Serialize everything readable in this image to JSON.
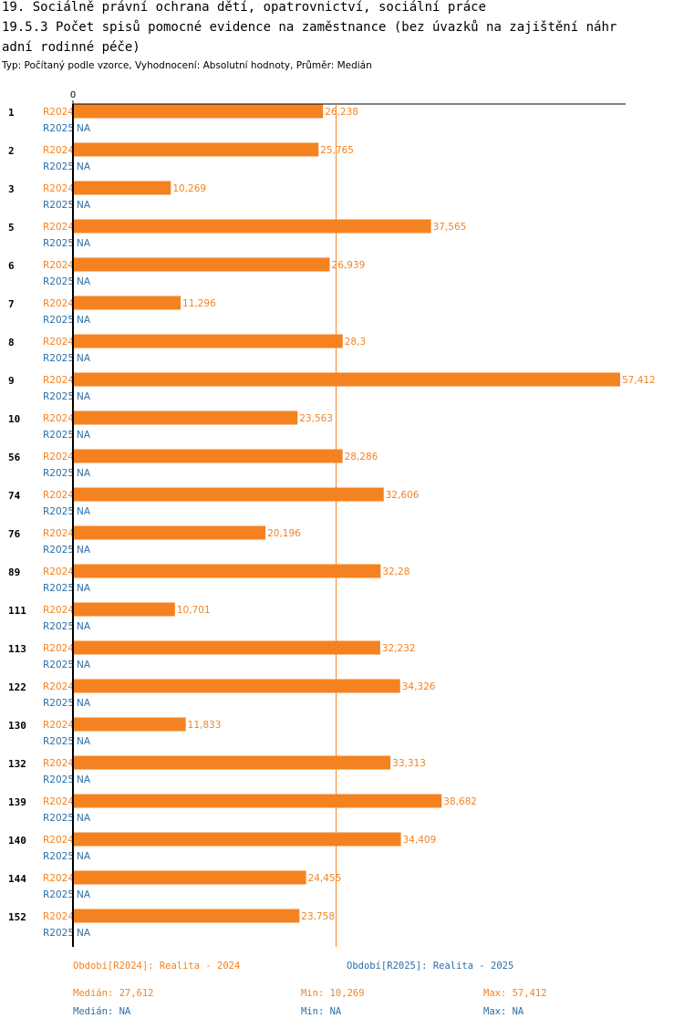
{
  "title_lines": [
    "19. Sociálně právní ochrana dětí, opatrovnictví, sociální práce",
    "19.5.3 Počet spisů pomocné evidence na zaměstnance  (bez úvazků na zajištění náhr",
    "adní rodinné péče)"
  ],
  "subtitle": "Typ: Počítaný podle vzorce, Vyhodnocení: Absolutní hodnoty, Průměr: Medián",
  "colors": {
    "r2024": "#f58220",
    "r2025": "#2a6fa8",
    "axis": "#000000",
    "median_line": "#f58220"
  },
  "chart_data": {
    "type": "bar",
    "orientation": "horizontal",
    "x_start_label": "0",
    "xlim": [
      0,
      57.412
    ],
    "median_line": 27.612,
    "categories": [
      "1",
      "2",
      "3",
      "5",
      "6",
      "7",
      "8",
      "9",
      "10",
      "56",
      "74",
      "76",
      "89",
      "111",
      "113",
      "122",
      "130",
      "132",
      "139",
      "140",
      "144",
      "152"
    ],
    "series": [
      {
        "name": "R2024",
        "values": [
          26.238,
          25.765,
          10.269,
          37.565,
          26.939,
          11.296,
          28.3,
          57.412,
          23.563,
          28.286,
          32.606,
          20.196,
          32.28,
          10.701,
          32.232,
          34.326,
          11.833,
          33.313,
          38.682,
          34.409,
          24.455,
          23.758
        ],
        "labels": [
          "26,238",
          "25,765",
          "10,269",
          "37,565",
          "26,939",
          "11,296",
          "28,3",
          "57,412",
          "23,563",
          "28,286",
          "32,606",
          "20,196",
          "32,28",
          "10,701",
          "32,232",
          "34,326",
          "11,833",
          "33,313",
          "38,682",
          "34,409",
          "24,455",
          "23,758"
        ]
      },
      {
        "name": "R2025",
        "values": [
          null,
          null,
          null,
          null,
          null,
          null,
          null,
          null,
          null,
          null,
          null,
          null,
          null,
          null,
          null,
          null,
          null,
          null,
          null,
          null,
          null,
          null
        ],
        "labels": [
          "NA",
          "NA",
          "NA",
          "NA",
          "NA",
          "NA",
          "NA",
          "NA",
          "NA",
          "NA",
          "NA",
          "NA",
          "NA",
          "NA",
          "NA",
          "NA",
          "NA",
          "NA",
          "NA",
          "NA",
          "NA",
          "NA"
        ]
      }
    ]
  },
  "legend": {
    "r2024": "Období[R2024]: Realita - 2024",
    "r2025": "Období[R2025]: Realita - 2025"
  },
  "stats": {
    "r2024": {
      "median": "Medián: 27,612",
      "min": "Min: 10,269",
      "max": "Max: 57,412"
    },
    "r2025": {
      "median": "Medián: NA",
      "min": "Min: NA",
      "max": "Max: NA"
    }
  }
}
